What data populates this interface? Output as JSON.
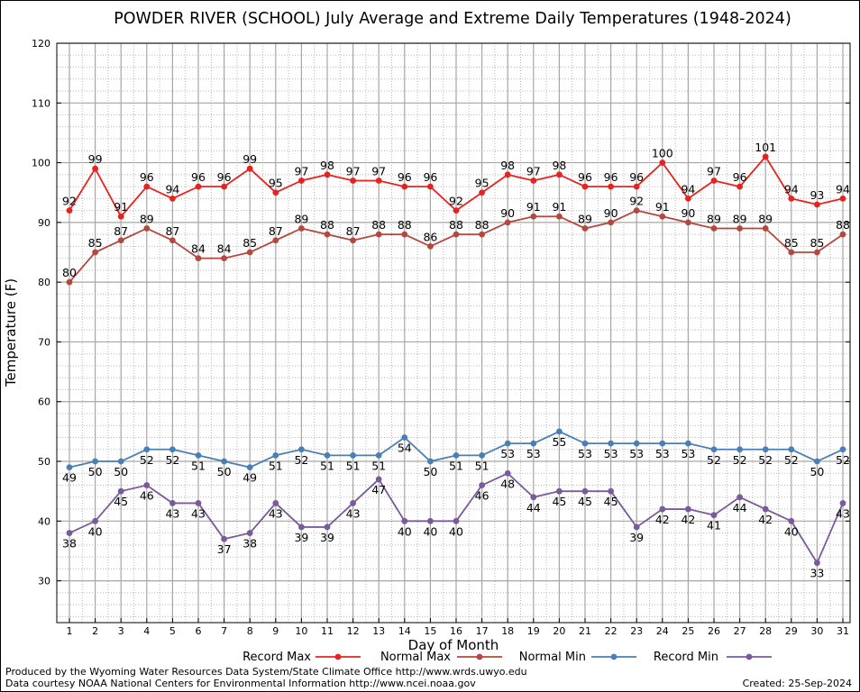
{
  "chart_data": {
    "type": "line",
    "title": "POWDER RIVER (SCHOOL) July Average and Extreme Daily Temperatures (1948-2024)",
    "xlabel": "Day of Month",
    "ylabel": "Temperature (F)",
    "xlim": [
      1,
      31
    ],
    "ylim": [
      23,
      120
    ],
    "yticks": [
      30,
      40,
      50,
      60,
      70,
      80,
      90,
      100,
      110,
      120
    ],
    "grid": true,
    "x": [
      1,
      2,
      3,
      4,
      5,
      6,
      7,
      8,
      9,
      10,
      11,
      12,
      13,
      14,
      15,
      16,
      17,
      18,
      19,
      20,
      21,
      22,
      23,
      24,
      25,
      26,
      27,
      28,
      29,
      30,
      31
    ],
    "series": [
      {
        "name": "Record Max",
        "color": "#e8231f",
        "label_position": "above",
        "values": [
          92,
          99,
          91,
          96,
          94,
          96,
          96,
          99,
          95,
          97,
          98,
          97,
          97,
          96,
          96,
          92,
          95,
          98,
          97,
          98,
          96,
          96,
          96,
          100,
          94,
          97,
          96,
          101,
          94,
          93,
          94
        ]
      },
      {
        "name": "Normal Max",
        "color": "#b5473f",
        "label_position": "above",
        "values": [
          80,
          85,
          87,
          89,
          87,
          84,
          84,
          85,
          87,
          89,
          88,
          87,
          88,
          88,
          86,
          88,
          88,
          90,
          91,
          91,
          89,
          90,
          92,
          91,
          90,
          89,
          89,
          89,
          85,
          85,
          88
        ]
      },
      {
        "name": "Normal Min",
        "color": "#4a7fb5",
        "label_position": "below",
        "values": [
          49,
          50,
          50,
          52,
          52,
          51,
          50,
          49,
          51,
          52,
          51,
          51,
          51,
          54,
          50,
          51,
          51,
          53,
          53,
          55,
          53,
          53,
          53,
          53,
          53,
          52,
          52,
          52,
          52,
          50,
          52
        ]
      },
      {
        "name": "Record Min",
        "color": "#7a5a9a",
        "label_position": "below",
        "values": [
          38,
          40,
          45,
          46,
          43,
          43,
          37,
          38,
          43,
          39,
          39,
          43,
          47,
          40,
          40,
          40,
          46,
          48,
          44,
          45,
          45,
          45,
          39,
          42,
          42,
          41,
          44,
          42,
          40,
          33,
          43
        ]
      }
    ]
  },
  "footer": {
    "produced_by": "Produced by the Wyoming Water Resources Data System/State Climate Office http://www.wrds.uwyo.edu",
    "data_courtesy": "Data courtesy NOAA National Centers for Environmental Information http://www.ncei.noaa.gov",
    "created": "Created:  25-Sep-2024"
  }
}
